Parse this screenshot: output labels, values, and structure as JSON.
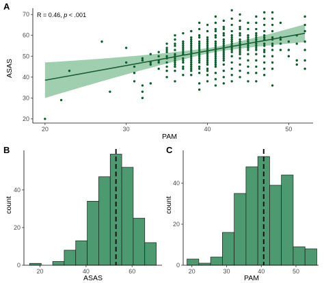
{
  "chart_data": [
    {
      "panel": "A",
      "type": "scatter",
      "xlabel": "PAM",
      "ylabel": "ASAS",
      "xlim": [
        18.5,
        53
      ],
      "ylim": [
        18,
        73
      ],
      "xticks": [
        20,
        30,
        40,
        50
      ],
      "yticks": [
        20,
        30,
        40,
        50,
        60,
        70
      ],
      "annotation": {
        "prefix": "R = 0.46, ",
        "p": "p",
        "suffix": " < .001"
      },
      "point_color": "#0b5d2c",
      "fit_line": {
        "x": [
          20,
          52
        ],
        "y": [
          38.5,
          61
        ],
        "color": "#1b5e34",
        "ci_color": "#7fbf94"
      },
      "points": [
        [
          20,
          20
        ],
        [
          22,
          29
        ],
        [
          23,
          43
        ],
        [
          27,
          57
        ],
        [
          28,
          33
        ],
        [
          30,
          54
        ],
        [
          30,
          47
        ],
        [
          31,
          42
        ],
        [
          31,
          38
        ],
        [
          31,
          45
        ],
        [
          32,
          49
        ],
        [
          32,
          48
        ],
        [
          32,
          36
        ],
        [
          32,
          33
        ],
        [
          32,
          30
        ],
        [
          33,
          37
        ],
        [
          33,
          46
        ],
        [
          33,
          47
        ],
        [
          33,
          51
        ],
        [
          34,
          47
        ],
        [
          34,
          44
        ],
        [
          34,
          48
        ],
        [
          34,
          52
        ],
        [
          34,
          50
        ],
        [
          35,
          54
        ],
        [
          35,
          50
        ],
        [
          35,
          47
        ],
        [
          35,
          45
        ],
        [
          35,
          43
        ],
        [
          35,
          40
        ],
        [
          35,
          56
        ],
        [
          35,
          52
        ],
        [
          35,
          49
        ],
        [
          35,
          53
        ],
        [
          36,
          45
        ],
        [
          36,
          48
        ],
        [
          36,
          51
        ],
        [
          36,
          55
        ],
        [
          36,
          58
        ],
        [
          36,
          53
        ],
        [
          36,
          43
        ],
        [
          36,
          38
        ],
        [
          36,
          60
        ],
        [
          36,
          47
        ],
        [
          36,
          49
        ],
        [
          36,
          56
        ],
        [
          36,
          50
        ],
        [
          36,
          46
        ],
        [
          37,
          57
        ],
        [
          37,
          53
        ],
        [
          37,
          49
        ],
        [
          37,
          45
        ],
        [
          37,
          41
        ],
        [
          37,
          61
        ],
        [
          37,
          55
        ],
        [
          37,
          51
        ],
        [
          37,
          47
        ],
        [
          37,
          44
        ],
        [
          37,
          52
        ],
        [
          37,
          56
        ],
        [
          37,
          48
        ],
        [
          37,
          54
        ],
        [
          38,
          62
        ],
        [
          38,
          59
        ],
        [
          38,
          56
        ],
        [
          38,
          53
        ],
        [
          38,
          50
        ],
        [
          38,
          47
        ],
        [
          38,
          44
        ],
        [
          38,
          41
        ],
        [
          38,
          55
        ],
        [
          38,
          51
        ],
        [
          38,
          46
        ],
        [
          38,
          48
        ],
        [
          38,
          57
        ],
        [
          38,
          52
        ],
        [
          38,
          49
        ],
        [
          38,
          45
        ],
        [
          38,
          58
        ],
        [
          38,
          54
        ],
        [
          38,
          43
        ],
        [
          39,
          66
        ],
        [
          39,
          63
        ],
        [
          39,
          60
        ],
        [
          39,
          57
        ],
        [
          39,
          54
        ],
        [
          39,
          51
        ],
        [
          39,
          48
        ],
        [
          39,
          45
        ],
        [
          39,
          42
        ],
        [
          39,
          37
        ],
        [
          39,
          34
        ],
        [
          39,
          59
        ],
        [
          39,
          56
        ],
        [
          39,
          53
        ],
        [
          39,
          50
        ],
        [
          39,
          47
        ],
        [
          39,
          44
        ],
        [
          39,
          55
        ],
        [
          39,
          52
        ],
        [
          39,
          49
        ],
        [
          40,
          65
        ],
        [
          40,
          62
        ],
        [
          40,
          59
        ],
        [
          40,
          56
        ],
        [
          40,
          53
        ],
        [
          40,
          50
        ],
        [
          40,
          47
        ],
        [
          40,
          44
        ],
        [
          40,
          41
        ],
        [
          40,
          38
        ],
        [
          40,
          58
        ],
        [
          40,
          55
        ],
        [
          40,
          52
        ],
        [
          40,
          49
        ],
        [
          40,
          46
        ],
        [
          40,
          43
        ],
        [
          40,
          57
        ],
        [
          40,
          54
        ],
        [
          40,
          51
        ],
        [
          40,
          48
        ],
        [
          41,
          69
        ],
        [
          41,
          66
        ],
        [
          41,
          63
        ],
        [
          41,
          60
        ],
        [
          41,
          57
        ],
        [
          41,
          54
        ],
        [
          41,
          51
        ],
        [
          41,
          48
        ],
        [
          41,
          45
        ],
        [
          41,
          42
        ],
        [
          41,
          39
        ],
        [
          41,
          36
        ],
        [
          41,
          56
        ],
        [
          41,
          53
        ],
        [
          41,
          50
        ],
        [
          41,
          47
        ],
        [
          41,
          59
        ],
        [
          41,
          62
        ],
        [
          41,
          55
        ],
        [
          41,
          52
        ],
        [
          41,
          49
        ],
        [
          41,
          46
        ],
        [
          42,
          67
        ],
        [
          42,
          64
        ],
        [
          42,
          61
        ],
        [
          42,
          58
        ],
        [
          42,
          55
        ],
        [
          42,
          52
        ],
        [
          42,
          49
        ],
        [
          42,
          46
        ],
        [
          42,
          43
        ],
        [
          42,
          40
        ],
        [
          42,
          37
        ],
        [
          42,
          57
        ],
        [
          42,
          54
        ],
        [
          42,
          51
        ],
        [
          42,
          48
        ],
        [
          42,
          60
        ],
        [
          42,
          63
        ],
        [
          42,
          56
        ],
        [
          42,
          53
        ],
        [
          42,
          50
        ],
        [
          43,
          72
        ],
        [
          43,
          68
        ],
        [
          43,
          65
        ],
        [
          43,
          62
        ],
        [
          43,
          59
        ],
        [
          43,
          56
        ],
        [
          43,
          53
        ],
        [
          43,
          50
        ],
        [
          43,
          47
        ],
        [
          43,
          44
        ],
        [
          43,
          41
        ],
        [
          43,
          38
        ],
        [
          43,
          58
        ],
        [
          43,
          55
        ],
        [
          43,
          52
        ],
        [
          43,
          60
        ],
        [
          43,
          57
        ],
        [
          43,
          54
        ],
        [
          44,
          70
        ],
        [
          44,
          67
        ],
        [
          44,
          64
        ],
        [
          44,
          61
        ],
        [
          44,
          58
        ],
        [
          44,
          55
        ],
        [
          44,
          52
        ],
        [
          44,
          49
        ],
        [
          44,
          46
        ],
        [
          44,
          43
        ],
        [
          44,
          40
        ],
        [
          44,
          57
        ],
        [
          44,
          54
        ],
        [
          44,
          51
        ],
        [
          44,
          60
        ],
        [
          44,
          63
        ],
        [
          44,
          56
        ],
        [
          44,
          53
        ],
        [
          45,
          66
        ],
        [
          45,
          63
        ],
        [
          45,
          60
        ],
        [
          45,
          57
        ],
        [
          45,
          54
        ],
        [
          45,
          51
        ],
        [
          45,
          48
        ],
        [
          45,
          45
        ],
        [
          45,
          42
        ],
        [
          45,
          38
        ],
        [
          45,
          59
        ],
        [
          45,
          56
        ],
        [
          45,
          53
        ],
        [
          45,
          55
        ],
        [
          45,
          58
        ],
        [
          46,
          69
        ],
        [
          46,
          66
        ],
        [
          46,
          63
        ],
        [
          46,
          60
        ],
        [
          46,
          57
        ],
        [
          46,
          54
        ],
        [
          46,
          51
        ],
        [
          46,
          48
        ],
        [
          46,
          45
        ],
        [
          46,
          42
        ],
        [
          46,
          38
        ],
        [
          46,
          59
        ],
        [
          46,
          56
        ],
        [
          46,
          53
        ],
        [
          46,
          61
        ],
        [
          46,
          58
        ],
        [
          46,
          55
        ],
        [
          47,
          71
        ],
        [
          47,
          68
        ],
        [
          47,
          65
        ],
        [
          47,
          62
        ],
        [
          47,
          59
        ],
        [
          47,
          56
        ],
        [
          47,
          53
        ],
        [
          47,
          50
        ],
        [
          47,
          47
        ],
        [
          47,
          44
        ],
        [
          47,
          41
        ],
        [
          47,
          58
        ],
        [
          47,
          55
        ],
        [
          47,
          52
        ],
        [
          47,
          60
        ],
        [
          48,
          71
        ],
        [
          48,
          68
        ],
        [
          48,
          65
        ],
        [
          48,
          62
        ],
        [
          48,
          59
        ],
        [
          48,
          56
        ],
        [
          48,
          53
        ],
        [
          48,
          50
        ],
        [
          48,
          47
        ],
        [
          48,
          44
        ],
        [
          48,
          36
        ],
        [
          48,
          58
        ],
        [
          48,
          55
        ],
        [
          49,
          66
        ],
        [
          49,
          59
        ],
        [
          49,
          56
        ],
        [
          49,
          53
        ],
        [
          49,
          58
        ],
        [
          50,
          57
        ],
        [
          50,
          50
        ],
        [
          50,
          53
        ],
        [
          51,
          60
        ],
        [
          51,
          56
        ],
        [
          51,
          48
        ],
        [
          51,
          46
        ],
        [
          52,
          69
        ],
        [
          52,
          65
        ],
        [
          52,
          62
        ],
        [
          52,
          57
        ],
        [
          52,
          53
        ],
        [
          52,
          48
        ],
        [
          52,
          44
        ]
      ]
    },
    {
      "panel": "B",
      "type": "bar",
      "xlabel": "ASAS",
      "ylabel": "count",
      "bin_width": 5,
      "bin_centers": [
        18,
        23,
        28,
        33,
        38,
        43,
        48,
        53,
        58,
        63,
        68
      ],
      "values": [
        1,
        0,
        2,
        8,
        13,
        34,
        47,
        59,
        52,
        25,
        12
      ],
      "xlim": [
        13,
        73
      ],
      "ylim": [
        0,
        61
      ],
      "xticks": [
        20,
        40,
        60
      ],
      "yticks": [
        0,
        20,
        40
      ],
      "mean_line": 53,
      "fill": "#4d9a70",
      "stroke": "#1a1a1a"
    },
    {
      "panel": "C",
      "type": "bar",
      "xlabel": "PAM",
      "ylabel": "count",
      "bin_width": 3.4,
      "bin_centers": [
        20.3,
        23.7,
        27.1,
        30.5,
        33.9,
        37.3,
        40.7,
        44.1,
        47.5,
        50.9,
        54.3
      ],
      "values": [
        3,
        1,
        4,
        16,
        35,
        48,
        53,
        39,
        44,
        9,
        8
      ],
      "xlim": [
        17.5,
        56.5
      ],
      "ylim": [
        0,
        56
      ],
      "xticks": [
        20,
        30,
        40,
        50
      ],
      "yticks": [
        0,
        20,
        40
      ],
      "mean_line": 40.7,
      "fill": "#4d9a70",
      "stroke": "#1a1a1a"
    }
  ]
}
